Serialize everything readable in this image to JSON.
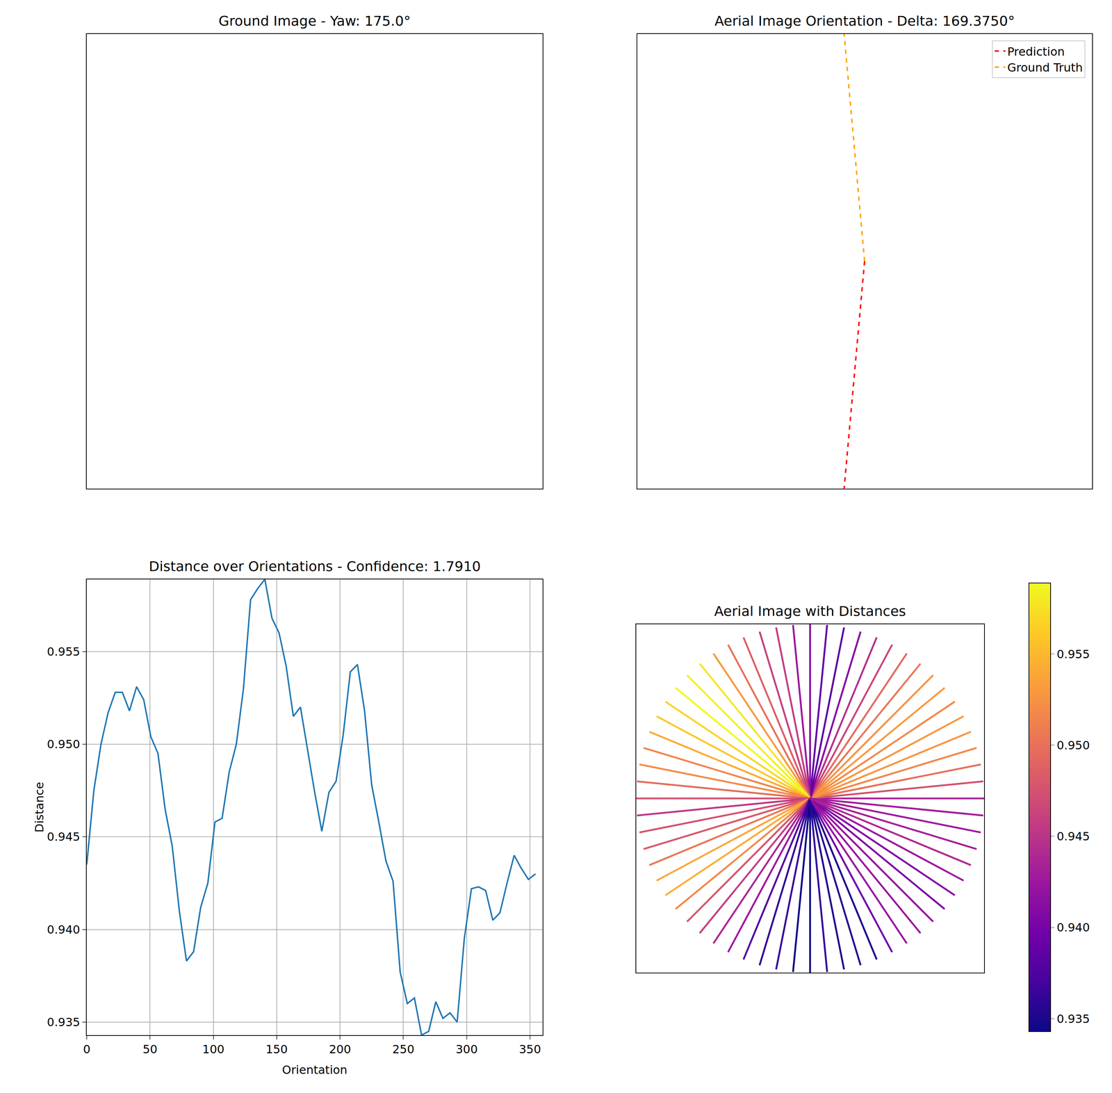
{
  "chart_data": [
    {
      "type": "image",
      "title": "Ground Image - Yaw: 175.0°",
      "tick_labels": false
    },
    {
      "type": "line",
      "title": "Aerial Image Orientation - Delta: 169.3750°",
      "tick_labels": false,
      "xlim": [
        0,
        1
      ],
      "ylim": [
        0,
        1
      ],
      "legend": "upper right",
      "series": [
        {
          "name": "Prediction",
          "color": "#ff0000",
          "line_style": "dashed",
          "x": [
            0.5,
            0.455
          ],
          "values": [
            0.5,
            0.0
          ]
        },
        {
          "name": "Ground Truth",
          "color": "#ffa500",
          "line_style": "dashed",
          "x": [
            0.5,
            0.455
          ],
          "values": [
            0.5,
            1.0
          ]
        }
      ]
    },
    {
      "type": "line",
      "title": "Distance over Orientations - Confidence: 1.7910",
      "x_label": "Orientation",
      "y_label": "Distance",
      "color": "#1f77b4",
      "grid": true,
      "x": [
        0,
        5.625,
        11.25,
        16.875,
        22.5,
        28.125,
        33.75,
        39.375,
        45,
        50.625,
        56.25,
        61.875,
        67.5,
        73.125,
        78.75,
        84.375,
        90,
        95.625,
        101.25,
        106.875,
        112.5,
        118.125,
        123.75,
        129.375,
        135,
        140.625,
        146.25,
        151.875,
        157.5,
        163.125,
        168.75,
        174.375,
        180,
        185.625,
        191.25,
        196.875,
        202.5,
        208.125,
        213.75,
        219.375,
        225,
        230.625,
        236.25,
        241.875,
        247.5,
        253.125,
        258.75,
        264.375,
        270,
        275.625,
        281.25,
        286.875,
        292.5,
        298.125,
        303.75,
        309.375,
        315,
        320.625,
        326.25,
        331.875,
        337.5,
        343.125,
        348.75,
        354.375
      ],
      "values": [
        0.9435,
        0.9475,
        0.95,
        0.9517,
        0.9528,
        0.9528,
        0.9518,
        0.9531,
        0.9524,
        0.9504,
        0.9495,
        0.9465,
        0.9445,
        0.941,
        0.9383,
        0.9388,
        0.9412,
        0.9425,
        0.9458,
        0.946,
        0.9485,
        0.95,
        0.953,
        0.9578,
        0.9584,
        0.9589,
        0.9568,
        0.956,
        0.9542,
        0.9515,
        0.952,
        0.9497,
        0.9474,
        0.9453,
        0.9474,
        0.948,
        0.9505,
        0.9539,
        0.9543,
        0.9518,
        0.9478,
        0.9458,
        0.9437,
        0.9426,
        0.9377,
        0.936,
        0.9363,
        0.9343,
        0.9345,
        0.9361,
        0.9352,
        0.9355,
        0.935,
        0.9395,
        0.9422,
        0.9423,
        0.9421,
        0.9405,
        0.9409,
        0.9425,
        0.944,
        0.9433,
        0.9427,
        0.943
      ],
      "xlim": [
        0,
        360
      ],
      "ylim": [
        0.9343,
        0.9589
      ],
      "xticks": [
        0,
        50,
        100,
        150,
        200,
        250,
        300,
        350
      ],
      "yticks": [
        0.935,
        {
          "value": 0.94,
          "label": "0.940"
        },
        0.945,
        {
          "value": 0.95,
          "label": "0.950"
        },
        0.955
      ]
    },
    {
      "type": "radial",
      "title": "Aerial Image with Distances",
      "tick_labels": false,
      "xlim": [
        0,
        1
      ],
      "ylim": [
        0,
        1
      ],
      "x": [
        0,
        5.625,
        11.25,
        16.875,
        22.5,
        28.125,
        33.75,
        39.375,
        45,
        50.625,
        56.25,
        61.875,
        67.5,
        73.125,
        78.75,
        84.375,
        90,
        95.625,
        101.25,
        106.875,
        112.5,
        118.125,
        123.75,
        129.375,
        135,
        140.625,
        146.25,
        151.875,
        157.5,
        163.125,
        168.75,
        174.375,
        180,
        185.625,
        191.25,
        196.875,
        202.5,
        208.125,
        213.75,
        219.375,
        225,
        230.625,
        236.25,
        241.875,
        247.5,
        253.125,
        258.75,
        264.375,
        270,
        275.625,
        281.25,
        286.875,
        292.5,
        298.125,
        303.75,
        309.375,
        315,
        320.625,
        326.25,
        331.875,
        337.5,
        343.125,
        348.75,
        354.375
      ],
      "values": [
        0.9435,
        0.9475,
        0.95,
        0.9517,
        0.9528,
        0.9528,
        0.9518,
        0.9531,
        0.9524,
        0.9504,
        0.9495,
        0.9465,
        0.9445,
        0.941,
        0.9383,
        0.9388,
        0.9412,
        0.9425,
        0.9458,
        0.946,
        0.9485,
        0.95,
        0.953,
        0.9578,
        0.9584,
        0.9589,
        0.9568,
        0.956,
        0.9542,
        0.9515,
        0.952,
        0.9497,
        0.9474,
        0.9453,
        0.9474,
        0.948,
        0.9505,
        0.9539,
        0.9543,
        0.9518,
        0.9478,
        0.9458,
        0.9437,
        0.9426,
        0.9377,
        0.936,
        0.9363,
        0.9343,
        0.9345,
        0.9361,
        0.9352,
        0.9355,
        0.935,
        0.9395,
        0.9422,
        0.9423,
        0.9421,
        0.9405,
        0.9409,
        0.9425,
        0.944,
        0.9433,
        0.9427,
        0.943
      ],
      "colorbar": {
        "range": [
          0.9343,
          0.9589
        ],
        "ticks": [
          0.935,
          {
            "value": 0.94,
            "label": "0.940"
          },
          0.945,
          {
            "value": 0.95,
            "label": "0.950"
          },
          0.955
        ]
      }
    }
  ]
}
